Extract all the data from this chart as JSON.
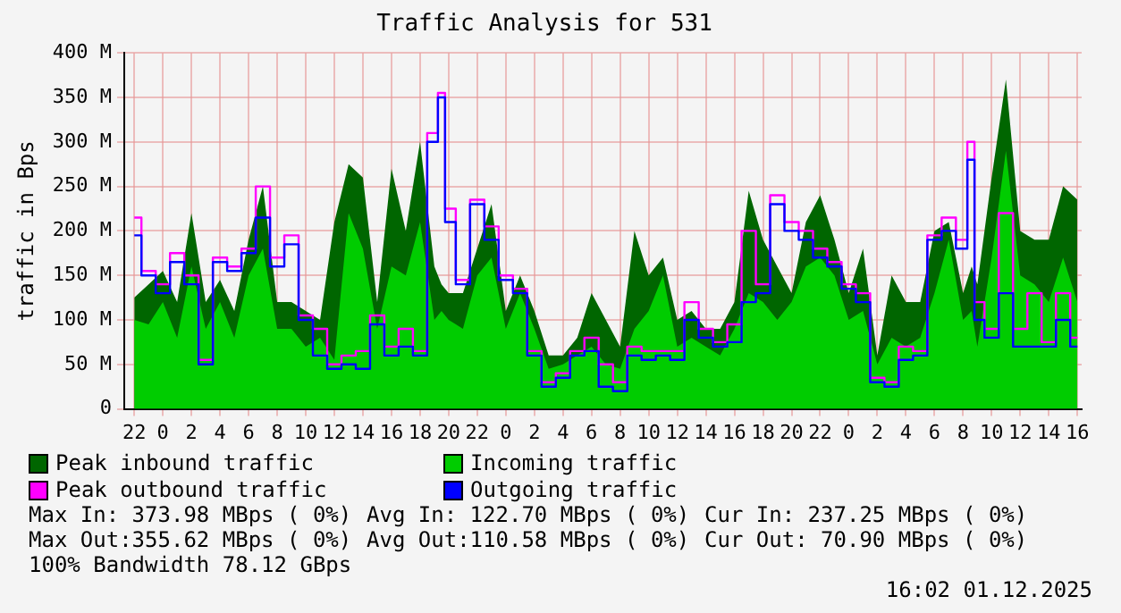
{
  "chart_data": {
    "type": "line",
    "title": "Traffic Analysis for 531",
    "ylabel": "traffic in Bps",
    "x": [
      "2025-11-28T22:00",
      "2025-11-28T23:00",
      "2025-11-29T00:00",
      "2025-11-29T01:00",
      "2025-11-29T02:00",
      "2025-11-29T03:00",
      "2025-11-29T04:00",
      "2025-11-29T05:00",
      "2025-11-29T06:00",
      "2025-11-29T07:00",
      "2025-11-29T08:00",
      "2025-11-29T09:00",
      "2025-11-29T10:00",
      "2025-11-29T11:00",
      "2025-11-29T12:00",
      "2025-11-29T13:00",
      "2025-11-29T14:00",
      "2025-11-29T15:00",
      "2025-11-29T16:00",
      "2025-11-29T17:00",
      "2025-11-29T18:00",
      "2025-11-29T19:00",
      "2025-11-29T19:30",
      "2025-11-29T20:00",
      "2025-11-29T21:00",
      "2025-11-29T22:00",
      "2025-11-29T23:00",
      "2025-11-30T00:00",
      "2025-11-30T01:00",
      "2025-11-30T02:00",
      "2025-11-30T03:00",
      "2025-11-30T04:00",
      "2025-11-30T05:00",
      "2025-11-30T06:00",
      "2025-11-30T07:00",
      "2025-11-30T08:00",
      "2025-11-30T09:00",
      "2025-11-30T10:00",
      "2025-11-30T11:00",
      "2025-11-30T12:00",
      "2025-11-30T13:00",
      "2025-11-30T14:00",
      "2025-11-30T15:00",
      "2025-11-30T16:00",
      "2025-11-30T17:00",
      "2025-11-30T18:00",
      "2025-11-30T19:00",
      "2025-11-30T20:00",
      "2025-11-30T21:00",
      "2025-11-30T22:00",
      "2025-11-30T23:00",
      "2025-12-01T00:00",
      "2025-12-01T01:00",
      "2025-12-01T02:00",
      "2025-12-01T03:00",
      "2025-12-01T04:00",
      "2025-12-01T05:00",
      "2025-12-01T06:00",
      "2025-12-01T07:00",
      "2025-12-01T08:00",
      "2025-12-01T08:36",
      "2025-12-01T09:00",
      "2025-12-01T10:00",
      "2025-12-01T11:00",
      "2025-12-01T12:00",
      "2025-12-01T13:00",
      "2025-12-01T14:00",
      "2025-12-01T15:00",
      "2025-12-01T16:00"
    ],
    "series": [
      {
        "name": "Peak inbound traffic",
        "type": "area",
        "color": "#006600",
        "values": [
          125,
          140,
          155,
          120,
          220,
          120,
          145,
          110,
          190,
          250,
          120,
          120,
          110,
          100,
          210,
          275,
          260,
          120,
          270,
          200,
          300,
          160,
          140,
          130,
          130,
          180,
          230,
          110,
          150,
          110,
          60,
          60,
          80,
          130,
          100,
          70,
          200,
          150,
          170,
          100,
          110,
          90,
          90,
          120,
          245,
          190,
          160,
          130,
          210,
          240,
          190,
          130,
          180,
          60,
          150,
          120,
          120,
          200,
          210,
          130,
          160,
          140,
          260,
          370,
          200,
          190,
          190,
          250,
          235
        ]
      },
      {
        "name": "Incoming traffic",
        "type": "area",
        "color": "#00cc00",
        "values": [
          100,
          95,
          120,
          80,
          160,
          90,
          120,
          80,
          150,
          180,
          90,
          90,
          70,
          80,
          55,
          220,
          180,
          90,
          160,
          150,
          210,
          100,
          110,
          100,
          90,
          150,
          170,
          90,
          130,
          90,
          45,
          50,
          60,
          70,
          50,
          45,
          90,
          110,
          150,
          70,
          80,
          70,
          60,
          90,
          130,
          120,
          100,
          120,
          160,
          170,
          150,
          100,
          110,
          50,
          80,
          70,
          80,
          130,
          190,
          100,
          110,
          70,
          170,
          290,
          150,
          140,
          120,
          170,
          120
        ]
      },
      {
        "name": "Peak outbound traffic",
        "type": "step",
        "color": "#ff00ff",
        "values": [
          215,
          155,
          140,
          175,
          150,
          55,
          170,
          160,
          180,
          250,
          170,
          195,
          105,
          90,
          50,
          60,
          65,
          105,
          70,
          90,
          65,
          310,
          355,
          225,
          145,
          235,
          205,
          150,
          135,
          65,
          30,
          40,
          65,
          80,
          50,
          30,
          70,
          65,
          65,
          65,
          120,
          90,
          75,
          95,
          200,
          140,
          240,
          210,
          200,
          180,
          165,
          140,
          130,
          35,
          30,
          70,
          65,
          195,
          215,
          190,
          300,
          120,
          90,
          220,
          90,
          130,
          75,
          130,
          80
        ]
      },
      {
        "name": "Outgoing traffic",
        "type": "step",
        "color": "#0000ff",
        "values": [
          195,
          150,
          130,
          165,
          140,
          50,
          165,
          155,
          175,
          215,
          160,
          185,
          100,
          60,
          45,
          50,
          45,
          95,
          60,
          70,
          60,
          300,
          350,
          210,
          140,
          230,
          190,
          145,
          130,
          60,
          25,
          35,
          60,
          65,
          25,
          20,
          60,
          55,
          60,
          55,
          100,
          80,
          70,
          75,
          120,
          130,
          230,
          200,
          190,
          170,
          160,
          135,
          120,
          30,
          25,
          55,
          60,
          190,
          200,
          180,
          280,
          100,
          80,
          130,
          70,
          70,
          70,
          100,
          70
        ]
      }
    ],
    "xlim": [
      "2025-11-28T21:18",
      "2025-12-01T16:18"
    ],
    "xticks": [
      {
        "value": "2025-11-28T22:00",
        "label": "22"
      },
      {
        "value": "2025-11-29T00:00",
        "label": "0"
      },
      {
        "value": "2025-11-29T02:00",
        "label": "2"
      },
      {
        "value": "2025-11-29T04:00",
        "label": "4"
      },
      {
        "value": "2025-11-29T06:00",
        "label": "6"
      },
      {
        "value": "2025-11-29T08:00",
        "label": "8"
      },
      {
        "value": "2025-11-29T10:00",
        "label": "10"
      },
      {
        "value": "2025-11-29T12:00",
        "label": "12"
      },
      {
        "value": "2025-11-29T14:00",
        "label": "14"
      },
      {
        "value": "2025-11-29T16:00",
        "label": "16"
      },
      {
        "value": "2025-11-29T18:00",
        "label": "18"
      },
      {
        "value": "2025-11-29T20:00",
        "label": "20"
      },
      {
        "value": "2025-11-29T22:00",
        "label": "22"
      },
      {
        "value": "2025-11-30T00:00",
        "label": "0"
      },
      {
        "value": "2025-11-30T02:00",
        "label": "2"
      },
      {
        "value": "2025-11-30T04:00",
        "label": "4"
      },
      {
        "value": "2025-11-30T06:00",
        "label": "6"
      },
      {
        "value": "2025-11-30T08:00",
        "label": "8"
      },
      {
        "value": "2025-11-30T10:00",
        "label": "10"
      },
      {
        "value": "2025-11-30T12:00",
        "label": "12"
      },
      {
        "value": "2025-11-30T14:00",
        "label": "14"
      },
      {
        "value": "2025-11-30T16:00",
        "label": "16"
      },
      {
        "value": "2025-11-30T18:00",
        "label": "18"
      },
      {
        "value": "2025-11-30T20:00",
        "label": "20"
      },
      {
        "value": "2025-11-30T22:00",
        "label": "22"
      },
      {
        "value": "2025-12-01T00:00",
        "label": "0"
      },
      {
        "value": "2025-12-01T02:00",
        "label": "2"
      },
      {
        "value": "2025-12-01T04:00",
        "label": "4"
      },
      {
        "value": "2025-12-01T06:00",
        "label": "6"
      },
      {
        "value": "2025-12-01T08:00",
        "label": "8"
      },
      {
        "value": "2025-12-01T10:00",
        "label": "10"
      },
      {
        "value": "2025-12-01T12:00",
        "label": "12"
      },
      {
        "value": "2025-12-01T14:00",
        "label": "14"
      },
      {
        "value": "2025-12-01T16:00",
        "label": "16"
      }
    ],
    "ylim": [
      0,
      400
    ],
    "yticks": [
      0,
      {
        "value": 50,
        "label": "50 M"
      },
      {
        "value": 100,
        "label": "100 M"
      },
      {
        "value": 150,
        "label": "150 M"
      },
      {
        "value": 200,
        "label": "200 M"
      },
      {
        "value": 250,
        "label": "250 M"
      },
      {
        "value": 300,
        "label": "300 M"
      },
      {
        "value": 350,
        "label": "350 M"
      },
      {
        "value": 400,
        "label": "400 M"
      }
    ],
    "grid": true,
    "legend": "bottom",
    "marker": "none",
    "line_style": "solid",
    "annotations": [
      "Max In: 373.98 MBps ( 0%)",
      "Avg In: 122.70 MBps ( 0%)",
      "Cur In: 237.25 MBps ( 0%)",
      "Max Out:355.62 MBps ( 0%)",
      "Avg Out:110.58 MBps ( 0%)",
      "Cur Out: 70.90 MBps ( 0%)",
      "100% Bandwidth 78.12 GBps",
      "16:02 01.12.2025"
    ]
  }
}
